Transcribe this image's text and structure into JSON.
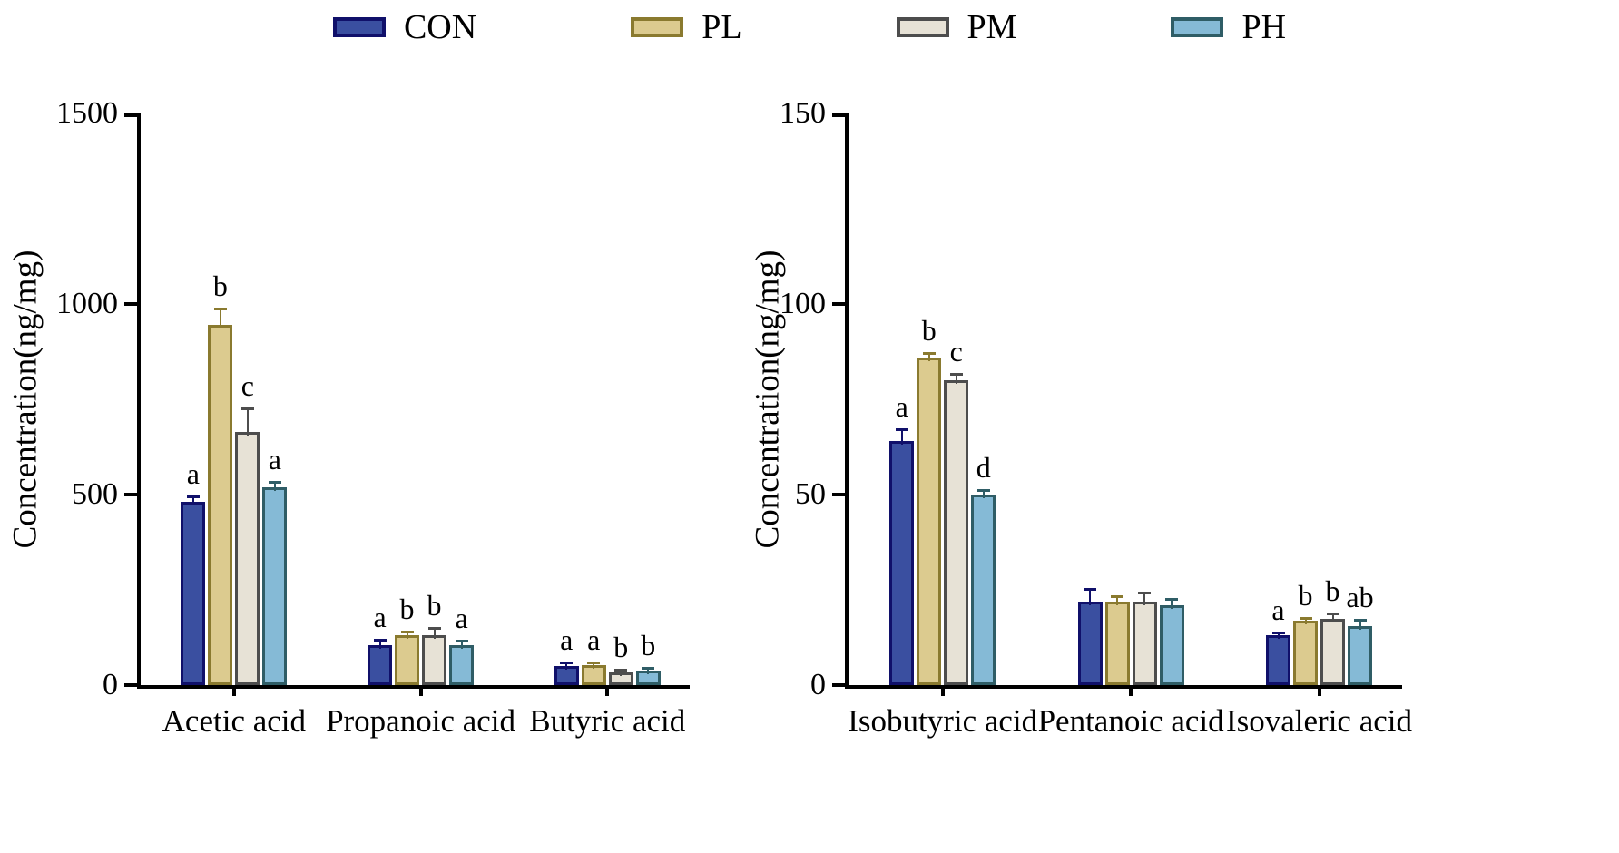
{
  "legend": {
    "items": [
      {
        "label": "CON",
        "fill": "#3A4FA0",
        "border": "#10106A"
      },
      {
        "label": "PL",
        "fill": "#DCCB8F",
        "border": "#8A7A2F"
      },
      {
        "label": "PM",
        "fill": "#E7E2D6",
        "border": "#4D4D4D"
      },
      {
        "label": "PH",
        "fill": "#85BAD6",
        "border": "#2F5D66"
      }
    ]
  },
  "chart_data": [
    {
      "type": "bar",
      "title": "",
      "xlabel": "",
      "ylabel": "Concentration(ng/mg)",
      "ylim": [
        0,
        1500
      ],
      "yticks": [
        0,
        500,
        1000,
        1500
      ],
      "grid": false,
      "legend_position": "top",
      "categories": [
        "Acetic acid",
        "Propanoic acid",
        "Butyric acid"
      ],
      "series": [
        {
          "name": "CON",
          "values": [
            480,
            105,
            50
          ],
          "errors": [
            12,
            12,
            8
          ],
          "letters": [
            "a",
            "a",
            "a"
          ]
        },
        {
          "name": "PL",
          "values": [
            945,
            130,
            52
          ],
          "errors": [
            40,
            8,
            6
          ],
          "letters": [
            "b",
            "b",
            "a"
          ]
        },
        {
          "name": "PM",
          "values": [
            665,
            130,
            33
          ],
          "errors": [
            60,
            18,
            5
          ],
          "letters": [
            "c",
            "b",
            "b"
          ]
        },
        {
          "name": "PH",
          "values": [
            520,
            105,
            37
          ],
          "errors": [
            12,
            10,
            6
          ],
          "letters": [
            "a",
            "a",
            "b"
          ]
        }
      ]
    },
    {
      "type": "bar",
      "title": "",
      "xlabel": "",
      "ylabel": "Concentration(ng/mg)",
      "ylim": [
        0,
        150
      ],
      "yticks": [
        0,
        50,
        100,
        150
      ],
      "grid": false,
      "legend_position": "top",
      "categories": [
        "Isobutyric acid",
        "Pentanoic acid",
        "Isovaleric acid"
      ],
      "series": [
        {
          "name": "CON",
          "values": [
            64,
            22,
            13
          ],
          "errors": [
            3,
            3,
            0.5
          ],
          "letters": [
            "a",
            "",
            "a"
          ]
        },
        {
          "name": "PL",
          "values": [
            86,
            22,
            17
          ],
          "errors": [
            1,
            1,
            0.5
          ],
          "letters": [
            "b",
            "",
            "b"
          ]
        },
        {
          "name": "PM",
          "values": [
            80,
            22,
            17.5
          ],
          "errors": [
            1.5,
            2,
            1
          ],
          "letters": [
            "c",
            "",
            "b"
          ]
        },
        {
          "name": "PH",
          "values": [
            50,
            21,
            15.5
          ],
          "errors": [
            1,
            1.5,
            1.5
          ],
          "letters": [
            "d",
            "",
            "ab"
          ]
        }
      ]
    }
  ]
}
